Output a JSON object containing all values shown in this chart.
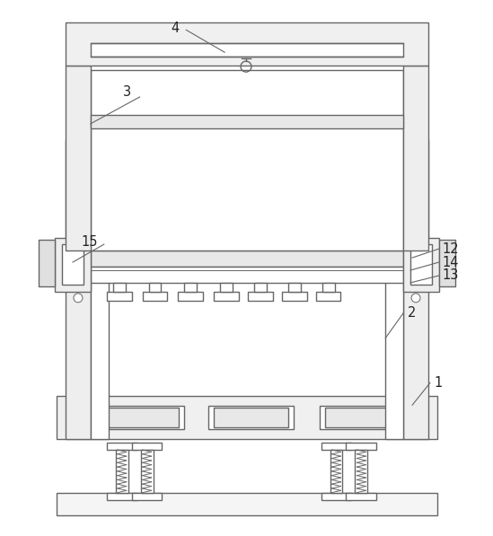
{
  "bg_color": "#ffffff",
  "lc": "#666666",
  "lc2": "#888888",
  "lw": 1.0,
  "lw_thin": 0.7,
  "figsize": [
    5.49,
    5.97
  ],
  "dpi": 100
}
